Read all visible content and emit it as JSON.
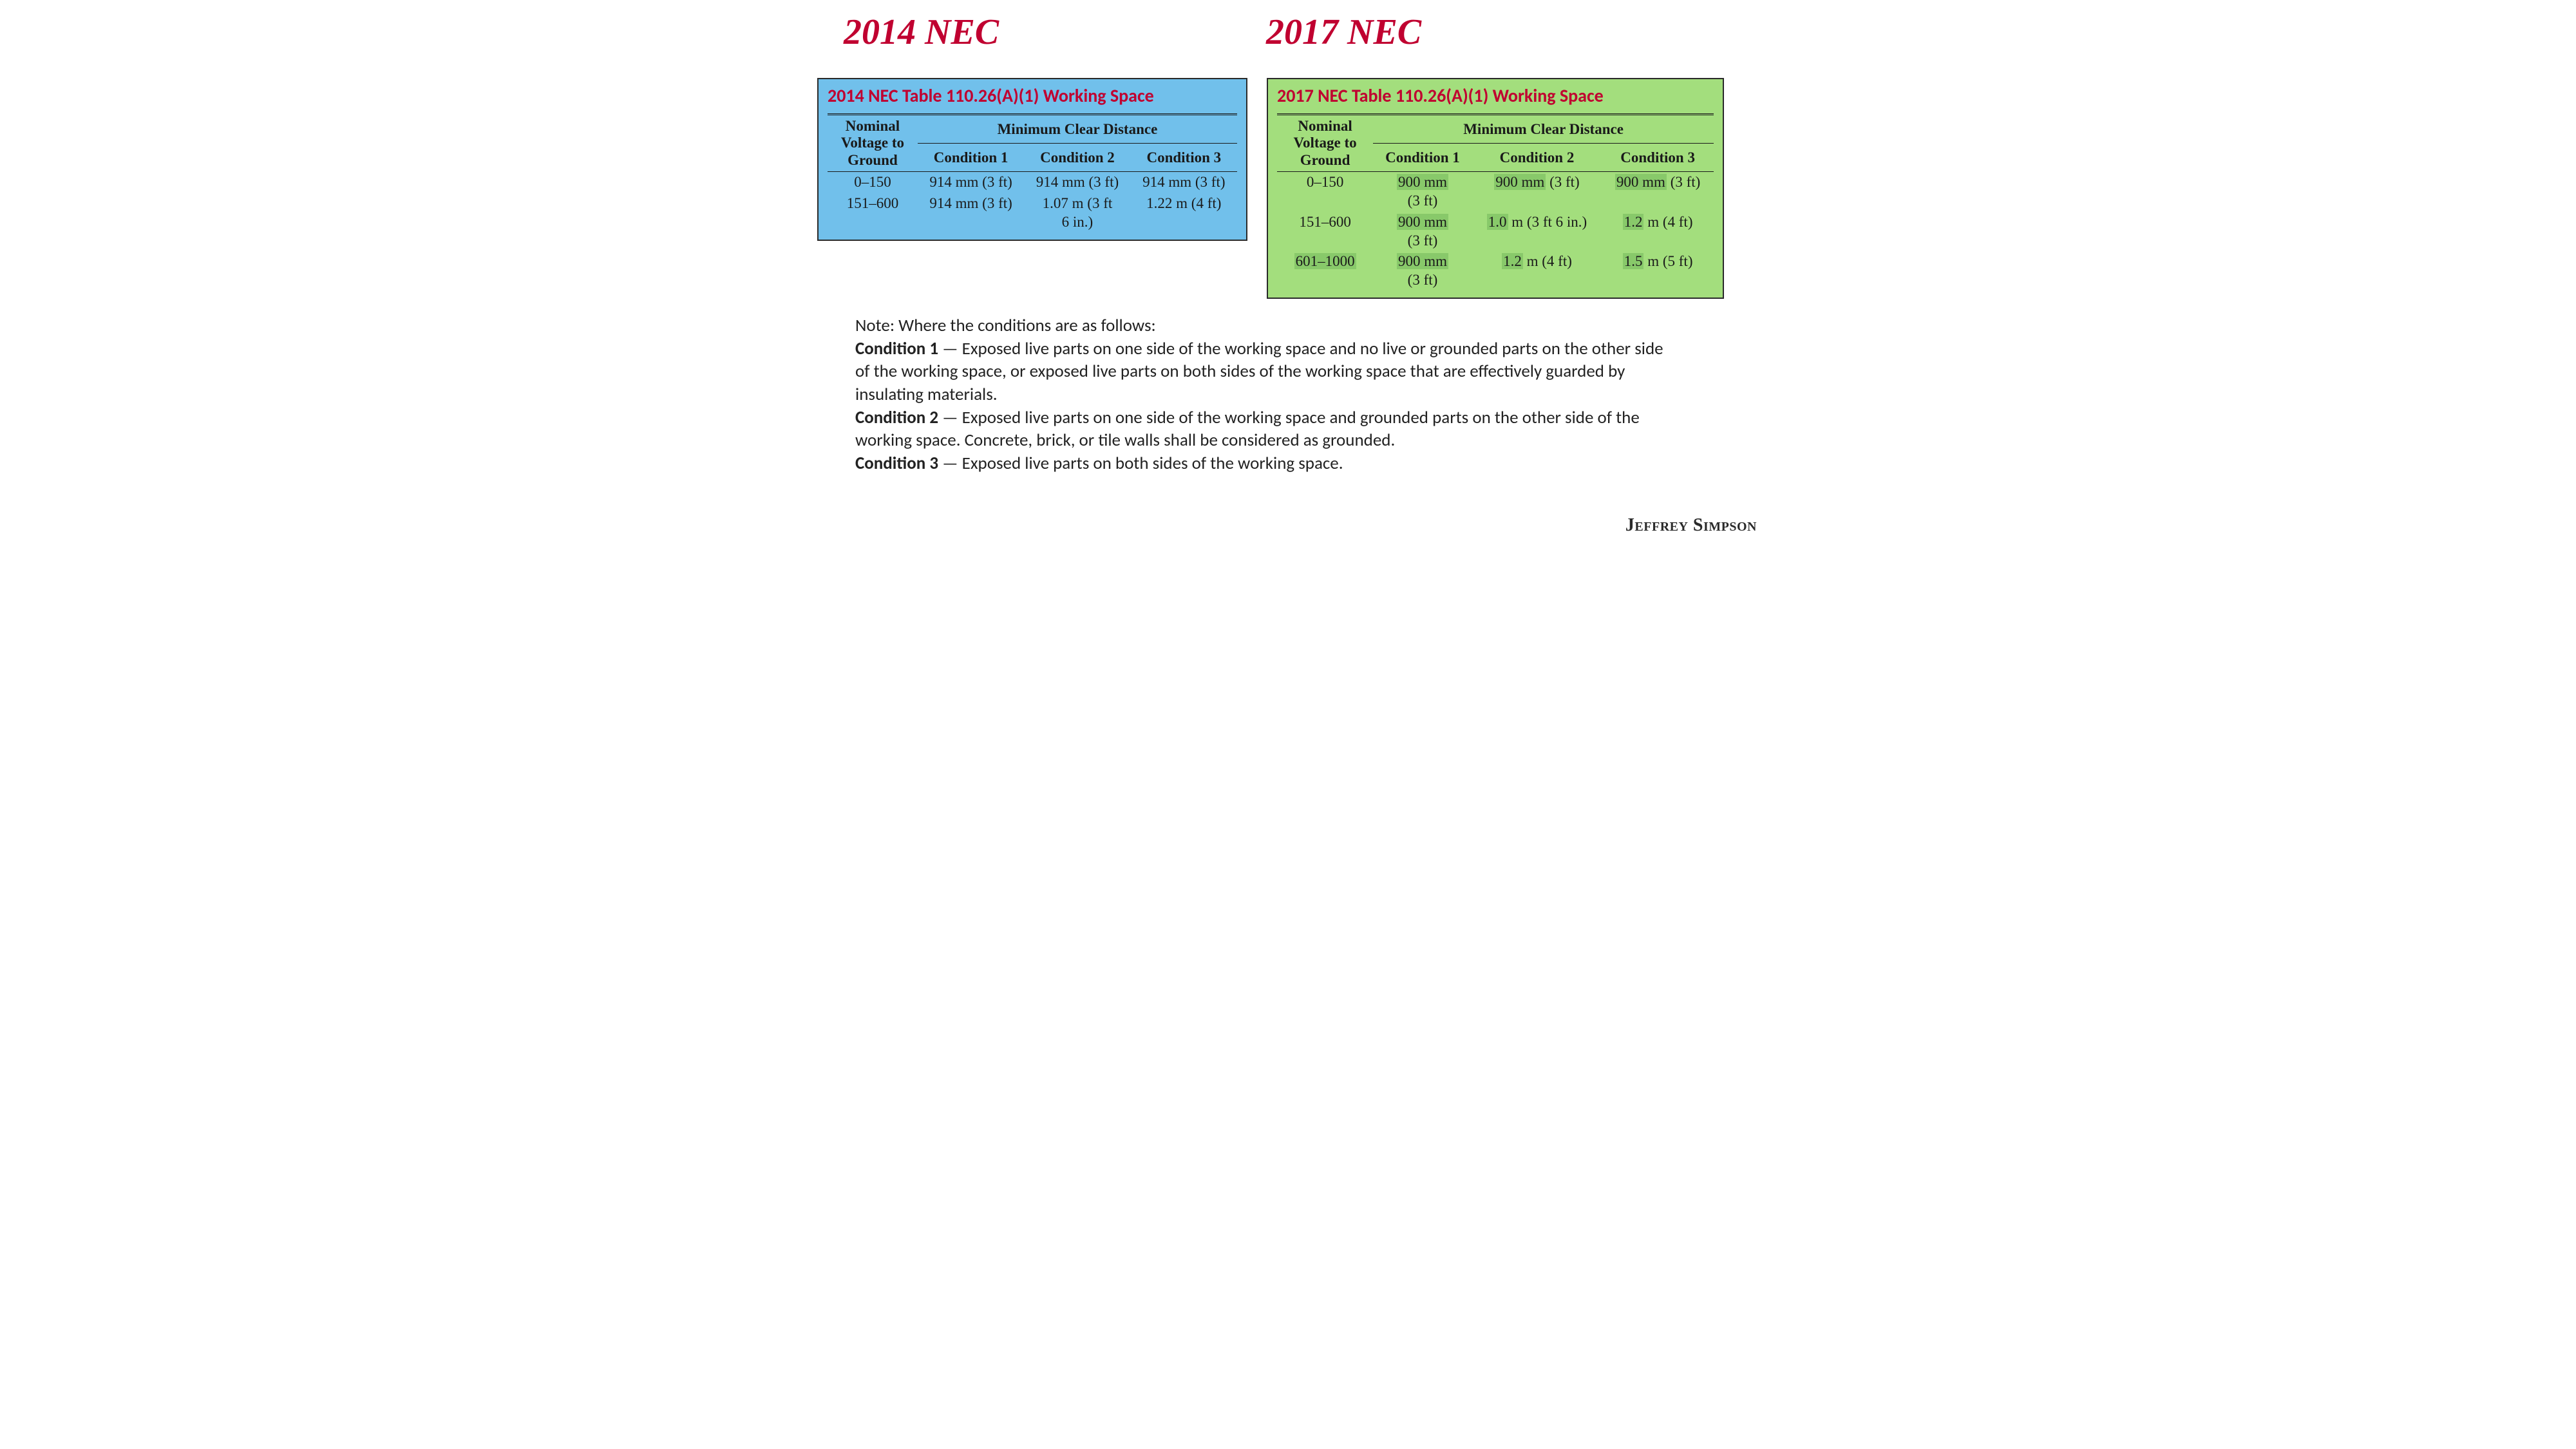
{
  "colors": {
    "heading": "#c00030",
    "card_border": "#2a2a2a",
    "blue_bg": "#71c0eb",
    "green_bg": "#a3de7d",
    "highlight": "#88c96a",
    "text": "#1a1a1a",
    "notes_text": "#222222",
    "page_bg": "#ffffff"
  },
  "fonts": {
    "heading_family": "Comic Sans MS",
    "heading_size_pt": 42,
    "card_title_family": "Calibri",
    "card_title_size_pt": 21,
    "table_family": "Georgia",
    "table_size_pt": 17,
    "notes_family": "Calibri",
    "notes_size_pt": 20,
    "author_family": "Comic Sans MS",
    "author_size_pt": 21
  },
  "left_heading": "2014 NEC",
  "right_heading": "2017 NEC",
  "blue": {
    "title": "2014 NEC Table 110.26(A)(1) Working Space",
    "col_voltage_l1": "Nominal",
    "col_voltage_l2": "Voltage to",
    "col_voltage_l3": "Ground",
    "col_mcd": "Minimum Clear Distance",
    "col_c1": "Condition 1",
    "col_c2": "Condition 2",
    "col_c3": "Condition 3",
    "rows": [
      {
        "v": "0–150",
        "c1": "914 mm (3 ft)",
        "c2": "914 mm (3 ft)",
        "c3": "914 mm (3 ft)"
      },
      {
        "v": "151–600",
        "c1": "914 mm (3 ft)",
        "c2_l1": "1.07 m (3 ft",
        "c2_l2": "6 in.)",
        "c3": "1.22 m (4 ft)"
      }
    ]
  },
  "green": {
    "title": "2017 NEC Table 110.26(A)(1) Working Space",
    "col_voltage_l1": "Nominal",
    "col_voltage_l2": "Voltage to",
    "col_voltage_l3": "Ground",
    "col_mcd": "Minimum Clear Distance",
    "col_c1": "Condition 1",
    "col_c2": "Condition 2",
    "col_c3": "Condition 3",
    "rows": [
      {
        "v": "0–150",
        "c1_hl": "900 mm",
        "c1_l2": "(3 ft)",
        "c2_pre": "900 mm",
        "c2_post": " (3 ft)",
        "c3_pre": "900 mm",
        "c3_post": " (3 ft)"
      },
      {
        "v": "151–600",
        "c1_hl": "900 mm",
        "c1_l2": "(3 ft)",
        "c2_pre": "1.0",
        "c2_post": " m (3 ft 6 in.)",
        "c3_pre": "1.2",
        "c3_post": " m (4 ft)"
      },
      {
        "v_hl": "601–1000",
        "c1_hl": "900 mm",
        "c1_l2": "(3 ft)",
        "c2_pre": "1.2",
        "c2_post": " m (4 ft)",
        "c3_pre": "1.5",
        "c3_post": " m (5 ft)"
      }
    ]
  },
  "notes": {
    "intro": "Note: Where the conditions are as follows:",
    "c1_label": "Condition 1",
    "c1_text": " — Exposed live parts on one side of the working space and no live or grounded parts on the other side of the working space, or exposed live parts on both sides of the working space that are effectively guarded by insulating materials.",
    "c2_label": "Condition 2",
    "c2_text": " — Exposed live parts on one side of the working space and grounded parts on the other side of the working space. Concrete, brick, or tile walls shall be considered as grounded.",
    "c3_label": "Condition 3",
    "c3_text": " — Exposed live parts on both sides of the working space."
  },
  "author": "Jeffrey Simpson"
}
